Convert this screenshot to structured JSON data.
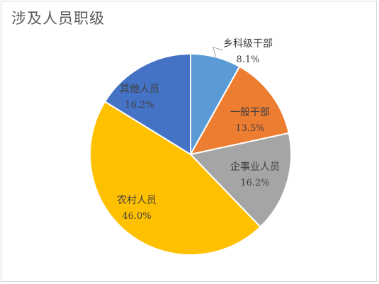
{
  "chart_data": {
    "type": "pie",
    "title": "涉及人员职级",
    "categories": [
      "乡科级干部",
      "一般干部",
      "企事业人员",
      "农村人员",
      "其他人员"
    ],
    "labels": [
      {
        "name": "乡科级干部",
        "value": "8.1%"
      },
      {
        "name": "一般干部",
        "value": "13.5%"
      },
      {
        "name": "企事业人员",
        "value": "16.2%"
      },
      {
        "name": "农村人员",
        "value": "46.0%"
      },
      {
        "name": "其他人员",
        "value": "16.2%"
      }
    ],
    "values": [
      8.1,
      13.5,
      16.2,
      46.0,
      16.2
    ],
    "colors": [
      "#5b9bd5",
      "#ed7d31",
      "#a5a5a5",
      "#ffc000",
      "#4472c4"
    ],
    "start_angle_deg": 0,
    "direction": "clockwise",
    "legend": "none"
  }
}
